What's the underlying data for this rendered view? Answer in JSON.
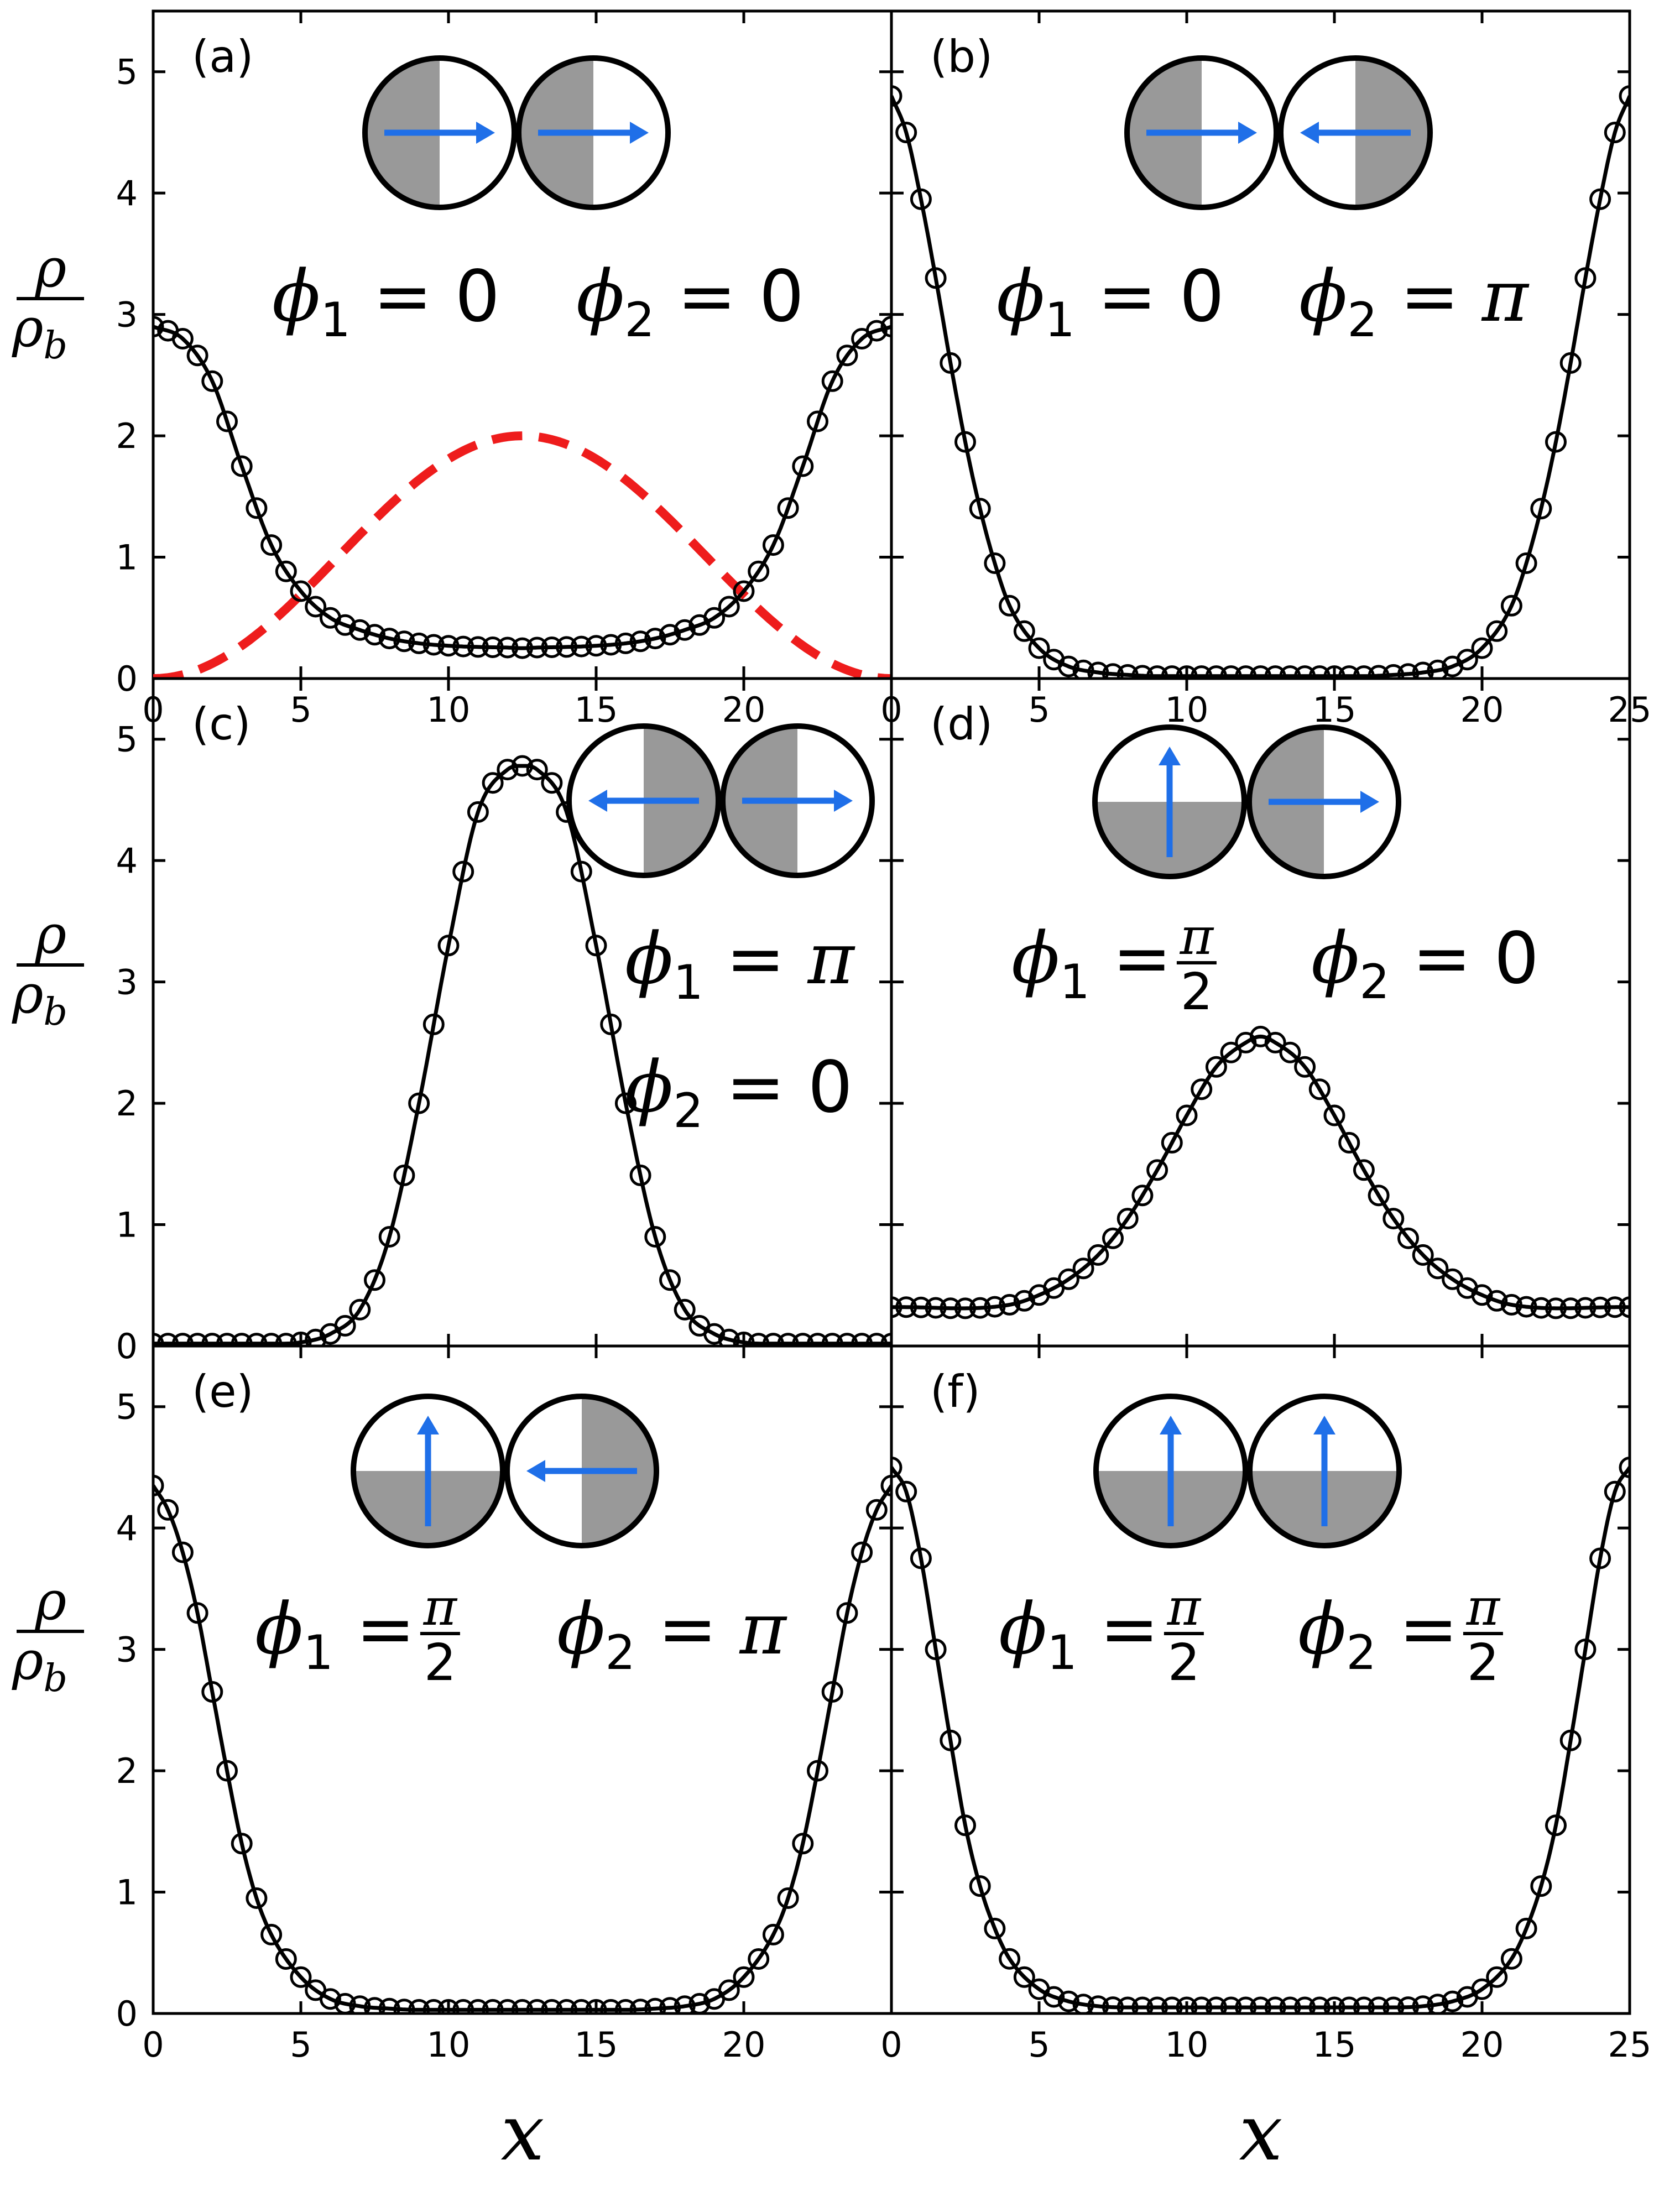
{
  "figure": {
    "xlabel": "x",
    "ylabel": {
      "num": "ρ",
      "den": "ρ",
      "den_sub": "b"
    },
    "x_ticks": [
      0,
      5,
      10,
      15,
      20,
      25
    ],
    "y_ticks": [
      0,
      1,
      2,
      3,
      4,
      5
    ],
    "colors": {
      "line": "#000000",
      "dashed": "#ee1c1c",
      "arrow": "#1f6fe8",
      "shade": "#999999"
    }
  },
  "chart_data": [
    {
      "type": "line",
      "panel": "(a)",
      "phi1": "0",
      "phi2": "0",
      "icon": {
        "left": {
          "shade": "left",
          "arrow": "right"
        },
        "right": {
          "shade": "left",
          "arrow": "right"
        }
      },
      "xlim": [
        0,
        25
      ],
      "ylim": [
        0,
        5.5
      ],
      "x_tick_labels": [
        "0",
        "5",
        "10",
        "15",
        "20",
        ""
      ],
      "series": [
        {
          "style": "solid",
          "x": [
            0,
            1,
            2,
            3,
            4,
            5,
            6,
            7,
            8,
            9,
            10,
            11,
            12,
            12.5,
            13,
            14,
            15,
            16,
            17,
            18,
            19,
            20,
            21,
            22,
            23,
            24,
            25
          ],
          "y": [
            2.9,
            2.8,
            2.45,
            1.75,
            1.1,
            0.72,
            0.5,
            0.4,
            0.33,
            0.29,
            0.27,
            0.26,
            0.255,
            0.25,
            0.255,
            0.26,
            0.27,
            0.29,
            0.33,
            0.4,
            0.5,
            0.72,
            1.1,
            1.75,
            2.45,
            2.8,
            2.9
          ]
        },
        {
          "style": "markers",
          "x_step": 0.5,
          "x_start": 0,
          "x_end": 25
        },
        {
          "style": "dashed",
          "x": [
            0,
            12.5,
            25
          ],
          "y": [
            0,
            2,
            0
          ],
          "shape": "sin^2"
        }
      ]
    },
    {
      "type": "line",
      "panel": "(b)",
      "phi1": "0",
      "phi2": "π",
      "icon": {
        "left": {
          "shade": "left",
          "arrow": "right"
        },
        "right": {
          "shade": "right",
          "arrow": "left"
        }
      },
      "xlim": [
        0,
        25
      ],
      "ylim": [
        0,
        5.5
      ],
      "x_tick_labels": [
        "0",
        "5",
        "10",
        "15",
        "20",
        "25"
      ],
      "series": [
        {
          "style": "solid",
          "x": [
            0,
            0.5,
            1,
            1.5,
            2,
            2.5,
            3,
            3.5,
            4,
            5,
            6,
            7,
            8,
            9,
            12.5,
            16,
            17,
            18,
            19,
            20,
            21,
            21.5,
            22,
            22.5,
            23,
            23.5,
            24,
            24.5,
            25
          ],
          "y": [
            4.8,
            4.5,
            3.95,
            3.3,
            2.6,
            1.95,
            1.4,
            0.95,
            0.6,
            0.25,
            0.1,
            0.05,
            0.03,
            0.02,
            0.02,
            0.02,
            0.03,
            0.05,
            0.1,
            0.25,
            0.6,
            0.95,
            1.4,
            1.95,
            2.6,
            3.3,
            3.95,
            4.5,
            4.8
          ]
        },
        {
          "style": "markers",
          "x_step": 0.5,
          "x_start": 0,
          "x_end": 25
        }
      ]
    },
    {
      "type": "line",
      "panel": "(c)",
      "phi1": "π",
      "phi2": "0",
      "icon": {
        "left": {
          "shade": "right",
          "arrow": "left"
        },
        "right": {
          "shade": "left",
          "arrow": "right"
        }
      },
      "xlim": [
        0,
        25
      ],
      "ylim": [
        0,
        5.5
      ],
      "x_tick_labels": [
        "",
        "",
        "",
        "",
        "",
        ""
      ],
      "series": [
        {
          "style": "solid",
          "x": [
            0,
            4,
            5,
            6,
            7,
            8,
            9,
            10,
            11,
            12,
            12.5,
            13,
            14,
            15,
            16,
            17,
            18,
            19,
            20,
            21,
            25
          ],
          "y": [
            0.02,
            0.02,
            0.03,
            0.1,
            0.3,
            0.9,
            2.0,
            3.3,
            4.4,
            4.75,
            4.78,
            4.75,
            4.4,
            3.3,
            2.0,
            0.9,
            0.3,
            0.1,
            0.03,
            0.02,
            0.02
          ]
        },
        {
          "style": "markers",
          "x_step": 0.5,
          "x_start": 0,
          "x_end": 25
        }
      ]
    },
    {
      "type": "line",
      "panel": "(d)",
      "phi1": "π/2",
      "phi2": "0",
      "icon": {
        "left": {
          "shade": "bottom",
          "arrow": "up"
        },
        "right": {
          "shade": "left",
          "arrow": "right"
        }
      },
      "xlim": [
        0,
        25
      ],
      "ylim": [
        0,
        5.5
      ],
      "x_tick_labels": [
        "",
        "",
        "",
        "",
        "",
        ""
      ],
      "series": [
        {
          "style": "solid",
          "x": [
            0,
            4,
            5,
            6,
            7,
            8,
            9,
            10,
            11,
            12,
            12.5,
            13,
            14,
            15,
            16,
            17,
            18,
            19,
            20,
            21,
            25
          ],
          "y": [
            0.32,
            0.34,
            0.42,
            0.55,
            0.75,
            1.05,
            1.45,
            1.9,
            2.3,
            2.5,
            2.55,
            2.5,
            2.3,
            1.9,
            1.45,
            1.05,
            0.75,
            0.55,
            0.42,
            0.34,
            0.32
          ]
        },
        {
          "style": "markers",
          "x_step": 0.5,
          "x_start": 0,
          "x_end": 25
        }
      ]
    },
    {
      "type": "line",
      "panel": "(e)",
      "phi1": "π/2",
      "phi2": "π",
      "icon": {
        "left": {
          "shade": "bottom",
          "arrow": "up"
        },
        "right": {
          "shade": "right",
          "arrow": "left"
        }
      },
      "xlim": [
        0,
        25
      ],
      "ylim": [
        0,
        5.5
      ],
      "x_tick_labels": [
        "0",
        "5",
        "10",
        "15",
        "20",
        ""
      ],
      "series": [
        {
          "style": "solid",
          "x": [
            0,
            0.5,
            1,
            1.5,
            2,
            2.5,
            3,
            3.5,
            4,
            5,
            6,
            7,
            8,
            9,
            12.5,
            16,
            17,
            18,
            19,
            20,
            21,
            21.5,
            22,
            22.5,
            23,
            23.5,
            24,
            24.5,
            25
          ],
          "y": [
            4.35,
            4.15,
            3.8,
            3.3,
            2.65,
            2.0,
            1.4,
            0.95,
            0.65,
            0.3,
            0.12,
            0.06,
            0.04,
            0.03,
            0.03,
            0.03,
            0.04,
            0.06,
            0.12,
            0.3,
            0.65,
            0.95,
            1.4,
            2.0,
            2.65,
            3.3,
            3.8,
            4.15,
            4.35
          ]
        },
        {
          "style": "markers",
          "x_step": 0.5,
          "x_start": 0,
          "x_end": 25
        }
      ]
    },
    {
      "type": "line",
      "panel": "(f)",
      "phi1": "π/2",
      "phi2": "π/2",
      "icon": {
        "left": {
          "shade": "bottom",
          "arrow": "up"
        },
        "right": {
          "shade": "bottom",
          "arrow": "up"
        }
      },
      "xlim": [
        0,
        25
      ],
      "ylim": [
        0,
        5.5
      ],
      "x_tick_labels": [
        "0",
        "5",
        "10",
        "15",
        "20",
        "25"
      ],
      "series": [
        {
          "style": "solid",
          "x": [
            0,
            0.5,
            1,
            1.5,
            2,
            2.5,
            3,
            3.5,
            4,
            5,
            6,
            7,
            8,
            9,
            12.5,
            16,
            17,
            18,
            19,
            20,
            21,
            21.5,
            22,
            22.5,
            23,
            23.5,
            24,
            24.5,
            25
          ],
          "y": [
            4.5,
            4.3,
            3.75,
            3.0,
            2.25,
            1.55,
            1.05,
            0.7,
            0.45,
            0.2,
            0.1,
            0.06,
            0.05,
            0.05,
            0.05,
            0.05,
            0.05,
            0.06,
            0.1,
            0.2,
            0.45,
            0.7,
            1.05,
            1.55,
            2.25,
            3.0,
            3.75,
            4.3,
            4.5
          ]
        },
        {
          "style": "markers",
          "x_step": 0.5,
          "x_start": 0,
          "x_end": 25
        }
      ]
    }
  ]
}
